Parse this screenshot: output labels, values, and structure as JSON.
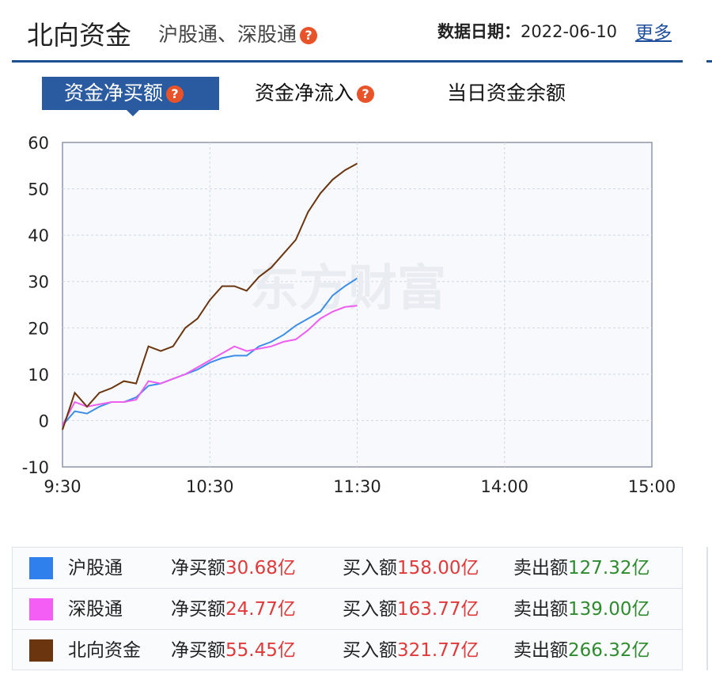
{
  "header": {
    "title": "北向资金",
    "subtitle": "沪股通、深股通",
    "help_icon": "question-bubble-icon",
    "date_label": "数据日期：",
    "date_value": "2022-06-10",
    "more": "更多"
  },
  "tabs": [
    {
      "label": "资金净买额",
      "active": true,
      "help": "?"
    },
    {
      "label": "资金净流入",
      "active": false,
      "help": "?"
    },
    {
      "label": "当日资金余额",
      "active": false
    }
  ],
  "watermark": "东方财富",
  "chart_data": {
    "type": "line",
    "title": "资金净买额",
    "xlabel": "",
    "ylabel": "",
    "ylim": [
      -10,
      60
    ],
    "yticks": [
      60,
      50,
      40,
      30,
      20,
      10,
      0,
      -10
    ],
    "xlim_minutes": [
      0,
      240
    ],
    "xticks": [
      {
        "label": "9:30",
        "t": 0
      },
      {
        "label": "10:30",
        "t": 60
      },
      {
        "label": "11:30",
        "t": 120
      },
      {
        "label": "14:00",
        "t": 180
      },
      {
        "label": "15:00",
        "t": 240
      }
    ],
    "grid": true,
    "x_minutes": [
      0,
      5,
      10,
      15,
      20,
      25,
      30,
      35,
      40,
      45,
      50,
      55,
      60,
      65,
      70,
      75,
      80,
      85,
      90,
      95,
      100,
      105,
      110,
      115,
      120
    ],
    "series": [
      {
        "name": "沪股通",
        "color": "#3d8ee8",
        "values": [
          -1,
          2,
          1.5,
          3,
          4,
          4,
          5,
          7.5,
          8,
          9,
          10,
          11,
          12.5,
          13.5,
          14,
          14,
          16,
          17,
          18.5,
          20.5,
          22,
          23.5,
          27,
          29,
          30.68
        ]
      },
      {
        "name": "深股通",
        "color": "#ee5ff0",
        "values": [
          -1,
          4,
          3,
          3.5,
          4,
          4,
          4.5,
          8.5,
          8,
          9,
          10,
          11.5,
          13,
          14.5,
          16,
          15,
          15.5,
          16,
          17,
          17.5,
          19.5,
          22,
          23.5,
          24.5,
          24.77
        ]
      },
      {
        "name": "北向资金",
        "color": "#6b3510",
        "values": [
          -2,
          6,
          3,
          6,
          7,
          8.5,
          8,
          16,
          15,
          16,
          20,
          22,
          26,
          29,
          29,
          28,
          31,
          33,
          36,
          39,
          45,
          49,
          52,
          54,
          55.45
        ]
      }
    ]
  },
  "legend": [
    {
      "name": "沪股通",
      "color": "#2f80ed",
      "net_label": "净买额",
      "net": "30.68亿",
      "buy_label": "买入额",
      "buy": "158.00亿",
      "sell_label": "卖出额",
      "sell": "127.32亿"
    },
    {
      "name": "深股通",
      "color": "#f55ef5",
      "net_label": "净买额",
      "net": "24.77亿",
      "buy_label": "买入额",
      "buy": "163.77亿",
      "sell_label": "卖出额",
      "sell": "139.00亿"
    },
    {
      "name": "北向资金",
      "color": "#6b3510",
      "net_label": "净买额",
      "net": "55.45亿",
      "buy_label": "买入额",
      "buy": "321.77亿",
      "sell_label": "卖出额",
      "sell": "266.32亿"
    }
  ]
}
